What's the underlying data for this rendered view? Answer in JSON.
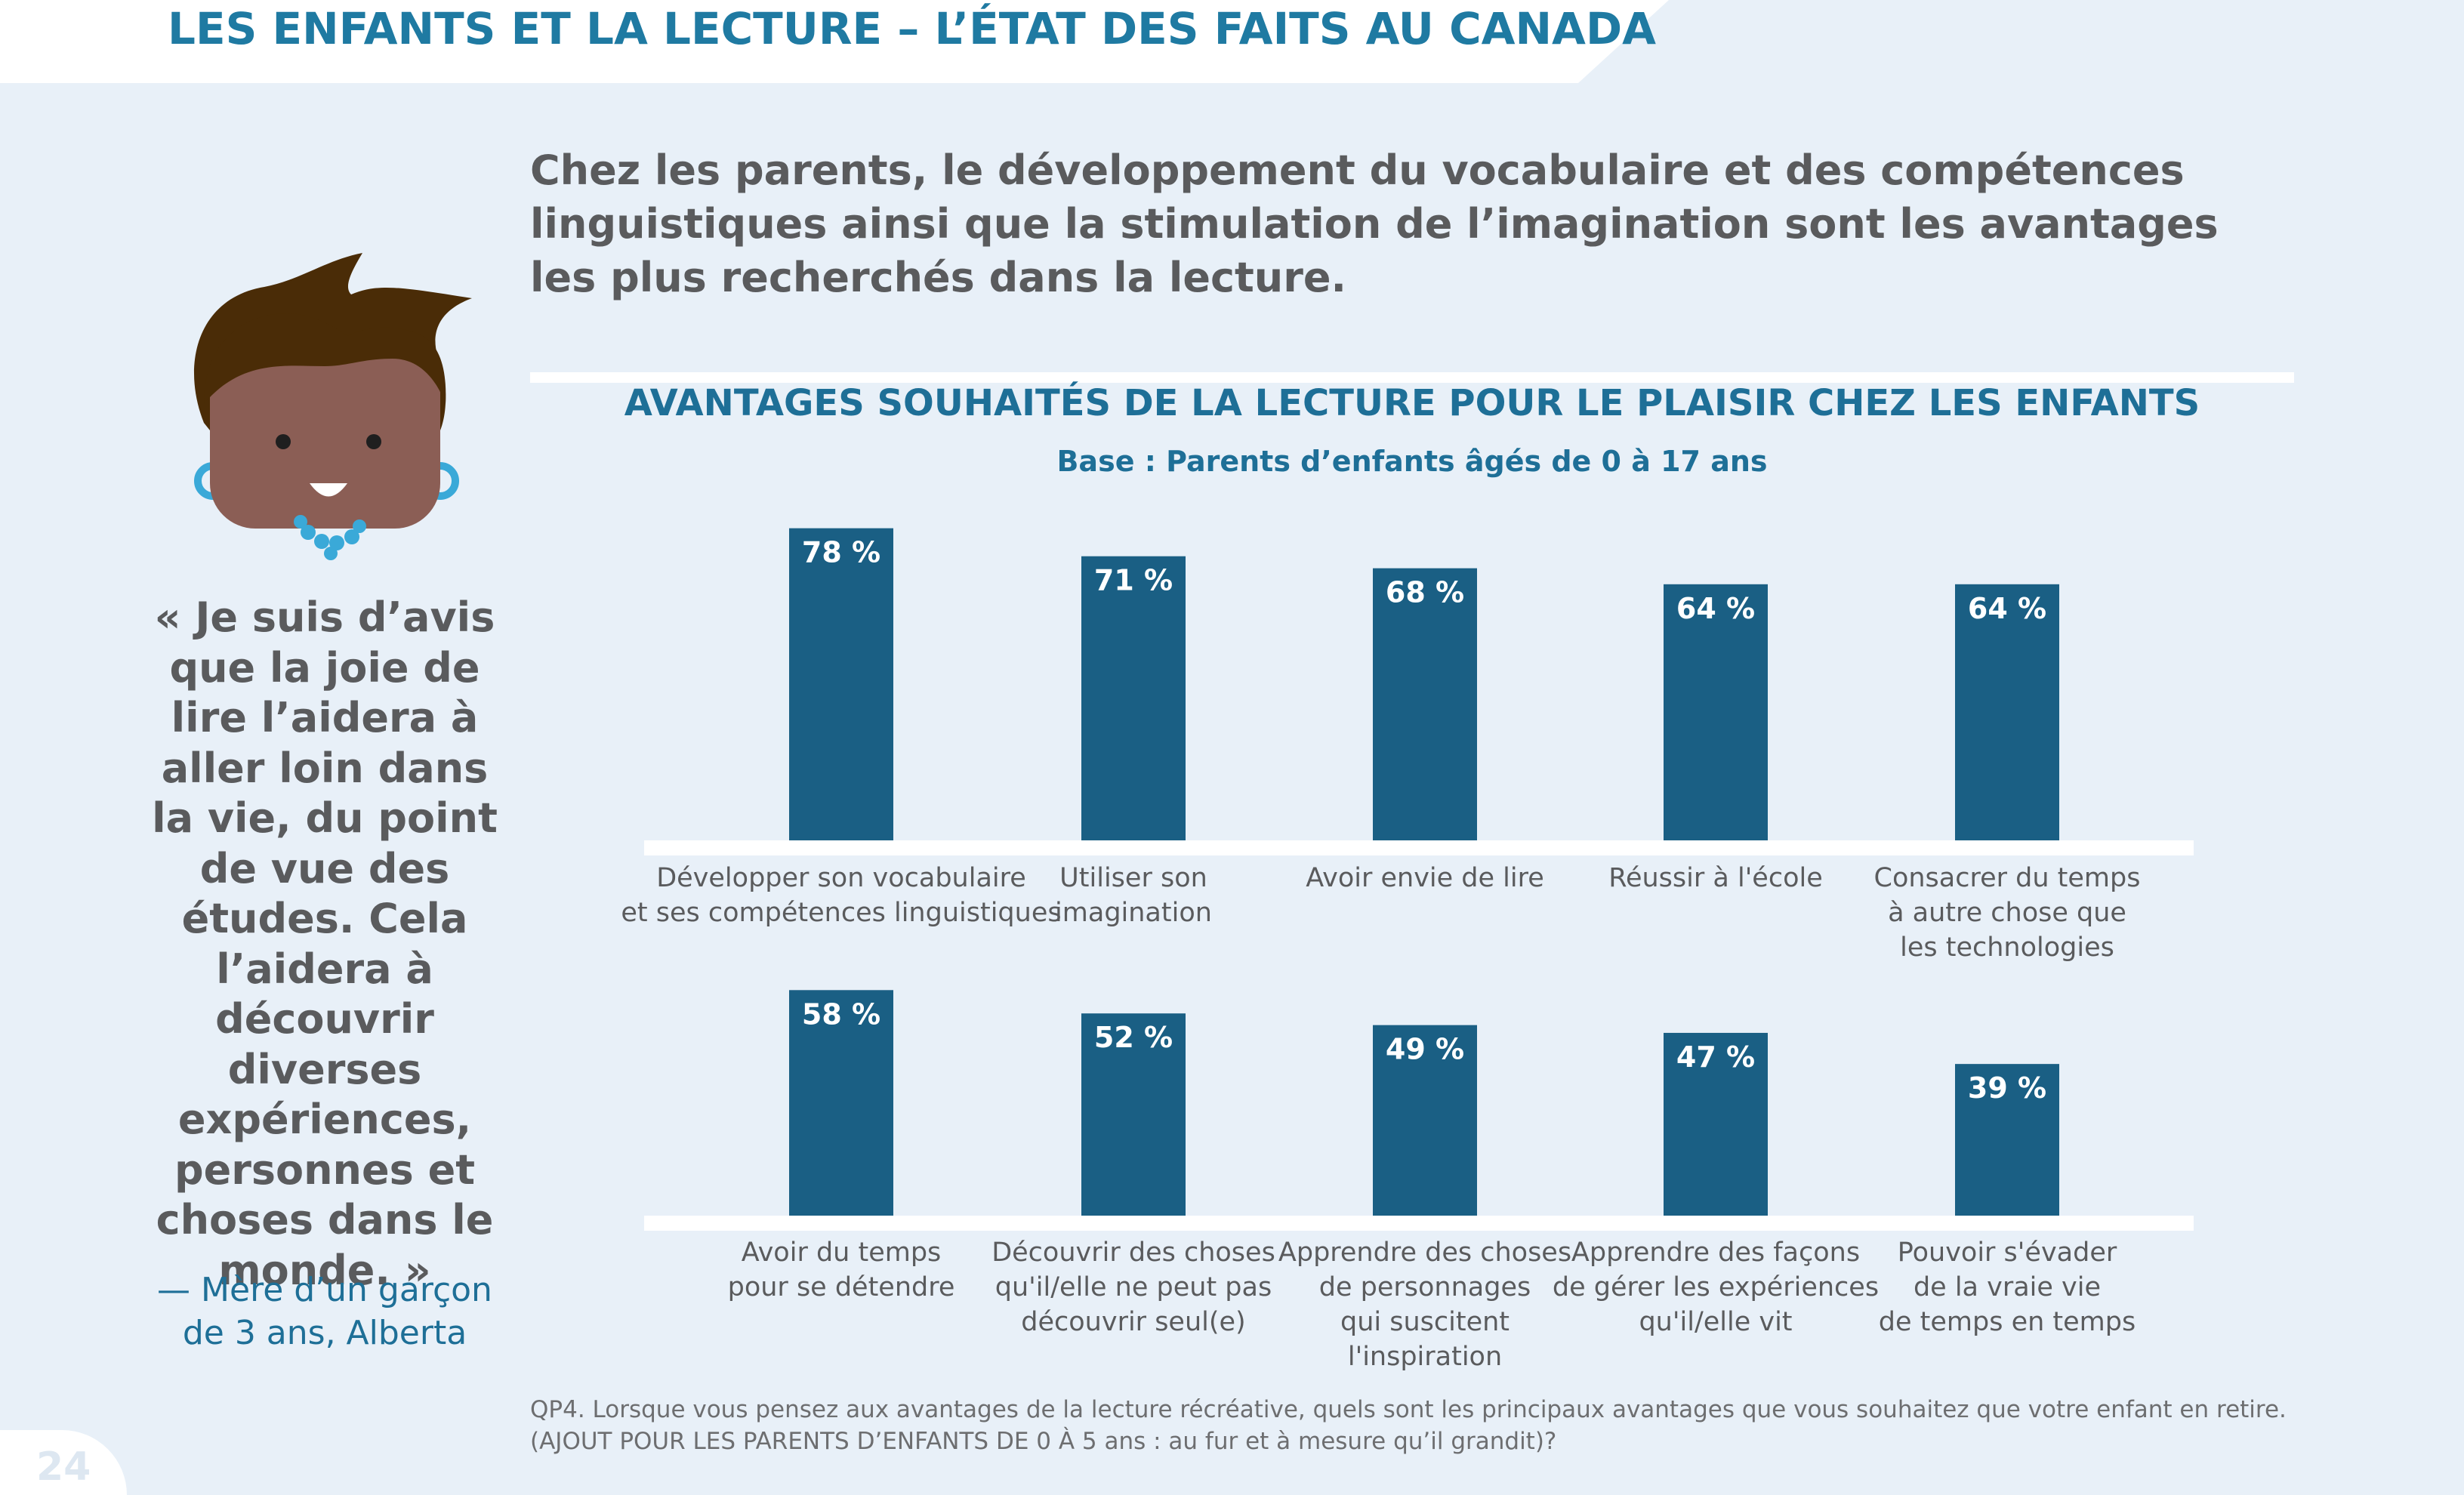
{
  "header": {
    "title": "LES ENFANTS ET LA LECTURE – L’ÉTAT DES FAITS AU CANADA"
  },
  "headline": "Chez les parents, le développement du vocabulaire et des compétences linguistiques ainsi que la stimulation de l’imagination sont les avantages les plus recherchés dans la lecture.",
  "quote": {
    "text": "« Je suis d’avis que la joie de lire l’aidera à aller loin dans la vie, du point de vue des études. Cela l’aidera à découvrir diverses expériences, personnes et choses dans le monde. »",
    "attribution": "— Mère d’un garçon de 3 ans, Alberta"
  },
  "footnote": "QP4. Lorsque vous pensez aux avantages de la lecture récréative, quels sont les principaux avantages que vous souhaitez que votre enfant en retire. (AJOUT POUR LES PARENTS D’ENFANTS DE 0 À 5 ans : au fur et à mesure qu’il grandit)?",
  "page_number": "24",
  "colors": {
    "bar": "#1a5f84",
    "title_blue": "#1f7aa2",
    "text_gray": "#5a5b5d",
    "background": "#e8f0f8"
  },
  "chart_data": {
    "type": "bar",
    "title": "AVANTAGES SOUHAITÉS DE LA LECTURE POUR LE PLAISIR CHEZ LES ENFANTS",
    "subtitle": "Base : Parents d’enfants âgés de 0 à 17 ans",
    "unit": "%",
    "ylim": [
      0,
      100
    ],
    "grid": false,
    "rows": [
      {
        "categories": [
          [
            "Développer son vocabulaire",
            "et ses compétences linguistiques"
          ],
          [
            "Utiliser son",
            "imagination"
          ],
          [
            "Avoir envie de lire"
          ],
          [
            "Réussir à l'école"
          ],
          [
            "Consacrer du temps",
            "à autre chose que",
            "les technologies"
          ]
        ],
        "values": [
          78,
          71,
          68,
          64,
          64
        ],
        "value_labels": [
          "78 %",
          "71 %",
          "68 %",
          "64 %",
          "64 %"
        ]
      },
      {
        "categories": [
          [
            "Avoir du temps",
            "pour se détendre"
          ],
          [
            "Découvrir des choses",
            "qu'il/elle ne peut pas",
            "découvrir seul(e)"
          ],
          [
            "Apprendre des choses",
            "de personnages",
            "qui suscitent",
            "l'inspiration"
          ],
          [
            "Apprendre des façons",
            "de gérer les expériences",
            "qu'il/elle vit"
          ],
          [
            "Pouvoir s'évader",
            "de la vraie vie",
            "de temps en temps"
          ]
        ],
        "values": [
          58,
          52,
          49,
          47,
          39
        ],
        "value_labels": [
          "58 %",
          "52 %",
          "49 %",
          "47 %",
          "39 %"
        ]
      }
    ]
  }
}
